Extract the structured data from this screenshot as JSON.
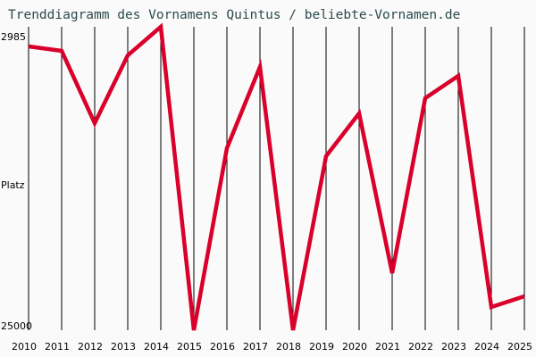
{
  "title": "Trenddiagramm des Vornamens Quintus / beliebte-Vornamen.de",
  "y_axis": {
    "top_label": "2985",
    "middle_label": "Platz",
    "bottom_label": "25000"
  },
  "colors": {
    "line": "#d9002b",
    "grid": "#000000",
    "background": "#fafafa",
    "title": "#2b4a4a"
  },
  "chart_data": {
    "type": "line",
    "title": "Trenddiagramm des Vornamens Quintus / beliebte-Vornamen.de",
    "xlabel": "",
    "ylabel": "Platz",
    "ylim": [
      25000,
      2985
    ],
    "y_inverted": true,
    "grid": "vertical lines at each year",
    "legend": "none",
    "categories": [
      "2010",
      "2011",
      "2012",
      "2013",
      "2014",
      "2015",
      "2016",
      "2017",
      "2018",
      "2019",
      "2020",
      "2021",
      "2022",
      "2023",
      "2024",
      "2025"
    ],
    "series": [
      {
        "name": "Quintus",
        "values": [
          4410,
          4733,
          9978,
          5057,
          2985,
          25000,
          11791,
          5899,
          25000,
          12374,
          9266,
          20856,
          8165,
          6546,
          23317,
          22540
        ]
      }
    ]
  }
}
